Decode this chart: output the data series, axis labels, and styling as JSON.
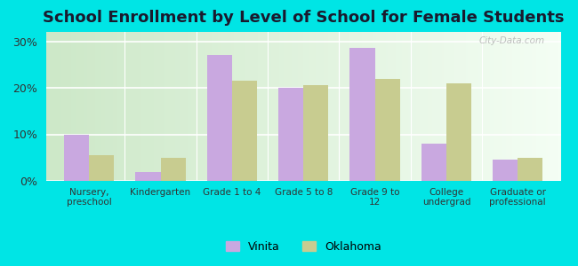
{
  "title": "School Enrollment by Level of School for Female Students",
  "categories": [
    "Nursery,\npreschool",
    "Kindergarten",
    "Grade 1 to 4",
    "Grade 5 to 8",
    "Grade 9 to\n12",
    "College\nundergrad",
    "Graduate or\nprofessional"
  ],
  "vinita": [
    10,
    2,
    27,
    20,
    28.5,
    8,
    4.5
  ],
  "oklahoma": [
    5.5,
    5,
    21.5,
    20.5,
    22,
    21,
    5
  ],
  "vinita_color": "#c9a8e0",
  "oklahoma_color": "#c8cc90",
  "background_color": "#00e5e5",
  "grad_left": "#cde8c8",
  "grad_right": "#f4fef4",
  "ylabel_ticks": [
    "0%",
    "10%",
    "20%",
    "30%"
  ],
  "yticks": [
    0,
    10,
    20,
    30
  ],
  "ylim": [
    0,
    32
  ],
  "title_fontsize": 13,
  "legend_labels": [
    "Vinita",
    "Oklahoma"
  ],
  "watermark": "City-Data.com"
}
